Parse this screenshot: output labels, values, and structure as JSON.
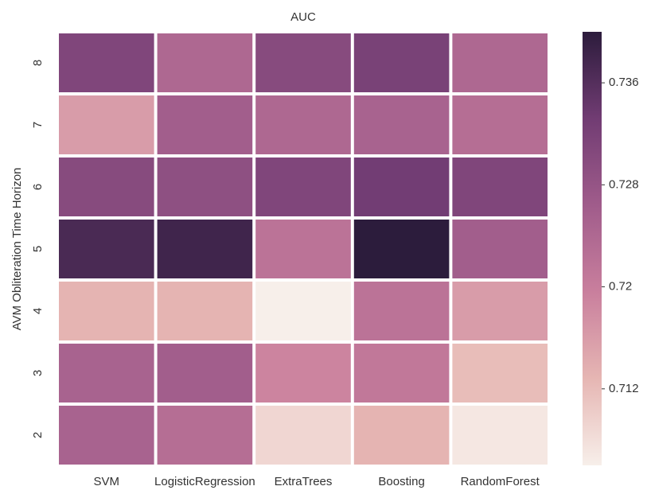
{
  "chart_data": {
    "type": "heatmap",
    "title": "AUC",
    "y_label": "AVM Obliteration Time Horizon",
    "x_categories": [
      "SVM",
      "LogisticRegression",
      "ExtraTrees",
      "Boosting",
      "RandomForest"
    ],
    "y_categories": [
      "8",
      "7",
      "6",
      "5",
      "4",
      "3",
      "2"
    ],
    "values": [
      [
        0.731,
        0.724,
        0.73,
        0.732,
        0.724
      ],
      [
        0.716,
        0.726,
        0.724,
        0.725,
        0.723
      ],
      [
        0.73,
        0.729,
        0.731,
        0.733,
        0.731
      ],
      [
        0.737,
        0.738,
        0.722,
        0.74,
        0.726
      ],
      [
        0.713,
        0.713,
        0.706,
        0.722,
        0.716
      ],
      [
        0.725,
        0.726,
        0.719,
        0.721,
        0.712
      ],
      [
        0.725,
        0.723,
        0.709,
        0.713,
        0.707
      ]
    ],
    "colorbar_lim": [
      0.706,
      0.74
    ],
    "colorbar_ticks": [
      0.712,
      0.72,
      0.728,
      0.736
    ],
    "colormap": [
      "#f7efea",
      "#e6b6b3",
      "#c97f9d",
      "#a05c8b",
      "#713c73",
      "#2c1c3c"
    ]
  }
}
